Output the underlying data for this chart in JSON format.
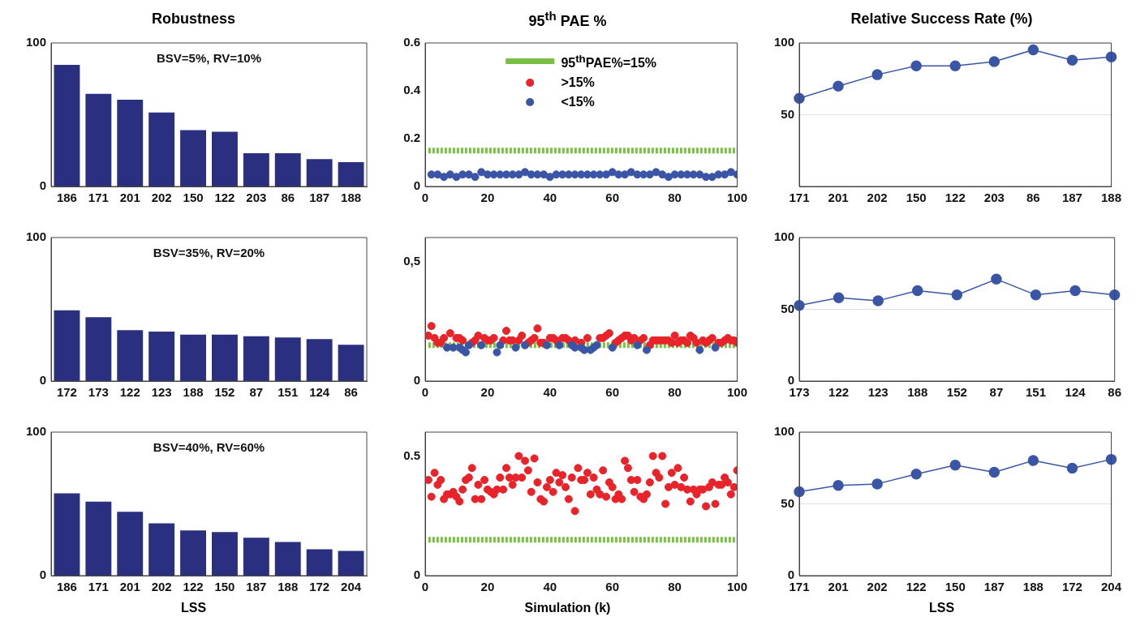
{
  "chart_data": [
    {
      "type": "bar",
      "title": "Robustness",
      "categories": [
        "186",
        "171",
        "201",
        "202",
        "150",
        "122",
        "203",
        "86",
        "187",
        "188"
      ],
      "values": [
        84.7,
        64.5,
        60.5,
        51.6,
        39.2,
        38.2,
        23.1,
        23.1,
        19.1,
        16.9
      ],
      "color": "#2b2f7f",
      "ylim": [
        0,
        100
      ],
      "yticks": [
        0,
        100
      ],
      "annotations": [
        "BSV=5%, RV=10%"
      ]
    },
    {
      "type": "scatter",
      "title": "95$^{th}$ PAE %",
      "xlim": [
        0,
        100
      ],
      "xticks": [
        0,
        20,
        40,
        60,
        80,
        100
      ],
      "ylim": [
        0,
        0.6
      ],
      "yticks": [
        0,
        0.2,
        0.4,
        0.6
      ],
      "marker": "circle",
      "legend": "top",
      "series": [
        {
          "name": "95$^{th}$PAE%=15%",
          "type": "line",
          "marker": "none",
          "line_style": "dashed",
          "color": "#78c043",
          "x": [
            1,
            100
          ],
          "values": [
            0.15,
            0.15
          ]
        },
        {
          "name": ">15%",
          "color": "#e8232a"
        },
        {
          "name": "<15%",
          "color": "#3b55a6",
          "x": [
            2,
            4,
            6,
            8,
            10,
            12,
            14,
            16,
            18,
            20,
            22,
            24,
            26,
            28,
            30,
            32,
            34,
            36,
            38,
            40,
            42,
            44,
            46,
            48,
            50,
            52,
            54,
            56,
            58,
            60,
            62,
            64,
            66,
            68,
            70,
            72,
            74,
            76,
            78,
            80,
            82,
            84,
            86,
            88,
            90,
            92,
            94,
            96,
            98,
            100
          ],
          "values": [
            0.05,
            0.05,
            0.04,
            0.05,
            0.04,
            0.05,
            0.05,
            0.04,
            0.06,
            0.05,
            0.05,
            0.05,
            0.05,
            0.05,
            0.05,
            0.06,
            0.05,
            0.05,
            0.05,
            0.04,
            0.05,
            0.05,
            0.05,
            0.05,
            0.05,
            0.05,
            0.05,
            0.05,
            0.05,
            0.06,
            0.05,
            0.05,
            0.06,
            0.05,
            0.05,
            0.05,
            0.06,
            0.05,
            0.04,
            0.05,
            0.05,
            0.05,
            0.05,
            0.05,
            0.04,
            0.04,
            0.05,
            0.05,
            0.06,
            0.05
          ]
        }
      ]
    },
    {
      "type": "line",
      "title": "Relative Success Rate (%)",
      "categories": [
        "171",
        "201",
        "202",
        "150",
        "122",
        "203",
        "86",
        "187",
        "188"
      ],
      "values": [
        61.4,
        69.9,
        77.9,
        84,
        84,
        87,
        95.2,
        88,
        90.2
      ],
      "color": "#3b55a6",
      "ylim": [
        0,
        100
      ],
      "yticks": [
        50,
        100
      ],
      "grid": "y",
      "marker": "circle"
    },
    {
      "type": "bar",
      "categories": [
        "172",
        "173",
        "122",
        "123",
        "188",
        "152",
        "87",
        "151",
        "124",
        "86"
      ],
      "values": [
        49.3,
        44.5,
        35.5,
        34.4,
        32.3,
        32.3,
        31.2,
        30.4,
        29.3,
        25.3
      ],
      "color": "#2b2f7f",
      "ylim": [
        0,
        100
      ],
      "yticks": [
        0,
        100
      ],
      "annotations": [
        "BSV=35%, RV=20%"
      ]
    },
    {
      "type": "scatter",
      "xlim": [
        0,
        100
      ],
      "xticks": [
        0,
        20,
        40,
        60,
        80,
        100
      ],
      "ylim": [
        0,
        0.6
      ],
      "yticks": [
        0,
        {
          "value": 0.5,
          "label": "0,5"
        }
      ],
      "marker": "circle",
      "series": [
        {
          "type": "line",
          "marker": "none",
          "line_style": "dashed",
          "color": "#78c043",
          "x": [
            1,
            100
          ],
          "values": [
            0.15,
            0.15
          ]
        },
        {
          "color": "#e8232a",
          "x": [
            1,
            2,
            3,
            4,
            5,
            6,
            8,
            10,
            11,
            12,
            15,
            16,
            17,
            19,
            20,
            21,
            22,
            25,
            26,
            27,
            28,
            30,
            31,
            33,
            34,
            35,
            36,
            37,
            38,
            40,
            41,
            42,
            44,
            45,
            46,
            48,
            50,
            52,
            56,
            57,
            58,
            59,
            61,
            62,
            63,
            64,
            65,
            66,
            67,
            69,
            70,
            72,
            73,
            74,
            75,
            76,
            77,
            78,
            79,
            80,
            81,
            82,
            83,
            84,
            85,
            86,
            87,
            89,
            90,
            91,
            92,
            94,
            95,
            96,
            97,
            98,
            99,
            100
          ],
          "values": [
            0.19,
            0.23,
            0.18,
            0.16,
            0.16,
            0.18,
            0.2,
            0.18,
            0.18,
            0.17,
            0.16,
            0.17,
            0.19,
            0.18,
            0.17,
            0.17,
            0.18,
            0.17,
            0.21,
            0.17,
            0.17,
            0.17,
            0.19,
            0.16,
            0.17,
            0.18,
            0.22,
            0.16,
            0.16,
            0.18,
            0.18,
            0.17,
            0.18,
            0.18,
            0.17,
            0.17,
            0.16,
            0.18,
            0.18,
            0.18,
            0.19,
            0.2,
            0.16,
            0.17,
            0.18,
            0.19,
            0.19,
            0.17,
            0.18,
            0.17,
            0.18,
            0.15,
            0.17,
            0.17,
            0.17,
            0.17,
            0.17,
            0.17,
            0.16,
            0.19,
            0.16,
            0.17,
            0.17,
            0.16,
            0.19,
            0.18,
            0.16,
            0.17,
            0.16,
            0.17,
            0.18,
            0.16,
            0.16,
            0.17,
            0.18,
            0.17,
            0.17,
            0.16
          ]
        },
        {
          "color": "#3b55a6",
          "x": [
            7,
            9,
            11,
            12,
            13,
            14,
            18,
            23,
            24,
            29,
            32,
            39,
            43,
            47,
            48,
            50,
            51,
            53,
            54,
            55,
            60,
            68,
            71,
            88,
            93
          ],
          "values": [
            0.14,
            0.14,
            0.14,
            0.13,
            0.12,
            0.15,
            0.15,
            0.12,
            0.15,
            0.14,
            0.15,
            0.15,
            0.15,
            0.15,
            0.14,
            0.14,
            0.13,
            0.13,
            0.14,
            0.15,
            0.14,
            0.15,
            0.13,
            0.13,
            0.14
          ]
        }
      ]
    },
    {
      "type": "line",
      "categories": [
        "173",
        "122",
        "123",
        "188",
        "152",
        "87",
        "151",
        "124",
        "86"
      ],
      "values": [
        52.7,
        58,
        56,
        63,
        60,
        71,
        60,
        63,
        60
      ],
      "color": "#3b55a6",
      "ylim": [
        0,
        100
      ],
      "yticks": [
        0,
        50,
        100
      ],
      "grid": "y",
      "marker": "circle"
    },
    {
      "type": "bar",
      "xlabel": "LSS",
      "categories": [
        "186",
        "171",
        "201",
        "202",
        "122",
        "150",
        "187",
        "188",
        "172",
        "204"
      ],
      "values": [
        57.3,
        51.5,
        44.5,
        36.5,
        31.5,
        30.4,
        26.4,
        23.5,
        18.4,
        17.3
      ],
      "color": "#2b2f7f",
      "ylim": [
        0,
        100
      ],
      "yticks": [
        0,
        100
      ],
      "annotations": [
        "BSV=40%, RV=60%"
      ]
    },
    {
      "type": "scatter",
      "xlabel": "Simulation (k)",
      "xlim": [
        0,
        100
      ],
      "xticks": [
        0,
        20,
        40,
        60,
        80,
        100
      ],
      "ylim": [
        0,
        0.6
      ],
      "yticks": [
        0,
        0.5
      ],
      "marker": "circle",
      "series": [
        {
          "type": "line",
          "marker": "none",
          "line_style": "dashed",
          "color": "#78c043",
          "x": [
            1,
            100
          ],
          "values": [
            0.15,
            0.15
          ]
        },
        {
          "color": "#e8232a",
          "x": [
            1,
            2,
            3,
            4,
            5,
            6,
            7,
            8,
            9,
            10,
            11,
            12,
            13,
            14,
            15,
            16,
            17,
            18,
            19,
            20,
            21,
            22,
            23,
            24,
            25,
            26,
            27,
            28,
            29,
            30,
            31,
            32,
            33,
            34,
            35,
            36,
            37,
            38,
            39,
            40,
            41,
            42,
            43,
            44,
            45,
            46,
            47,
            48,
            49,
            50,
            51,
            52,
            53,
            54,
            55,
            56,
            57,
            58,
            59,
            60,
            61,
            62,
            63,
            64,
            65,
            66,
            67,
            68,
            69,
            70,
            71,
            72,
            73,
            74,
            75,
            76,
            77,
            78,
            79,
            80,
            81,
            82,
            83,
            84,
            85,
            86,
            87,
            88,
            89,
            90,
            91,
            92,
            93,
            94,
            95,
            96,
            97,
            98,
            99,
            100
          ],
          "values": [
            0.4,
            0.33,
            0.43,
            0.38,
            0.4,
            0.32,
            0.34,
            0.34,
            0.35,
            0.33,
            0.31,
            0.36,
            0.4,
            0.41,
            0.45,
            0.32,
            0.38,
            0.32,
            0.4,
            0.36,
            0.35,
            0.34,
            0.36,
            0.41,
            0.36,
            0.45,
            0.41,
            0.38,
            0.41,
            0.5,
            0.41,
            0.48,
            0.44,
            0.35,
            0.49,
            0.39,
            0.32,
            0.31,
            0.37,
            0.4,
            0.35,
            0.43,
            0.39,
            0.42,
            0.37,
            0.32,
            0.41,
            0.27,
            0.45,
            0.4,
            0.4,
            0.43,
            0.34,
            0.41,
            0.36,
            0.34,
            0.44,
            0.33,
            0.39,
            0.37,
            0.32,
            0.34,
            0.32,
            0.48,
            0.45,
            0.4,
            0.35,
            0.4,
            0.33,
            0.32,
            0.34,
            0.39,
            0.5,
            0.43,
            0.41,
            0.5,
            0.3,
            0.37,
            0.43,
            0.38,
            0.45,
            0.37,
            0.41,
            0.36,
            0.31,
            0.36,
            0.34,
            0.36,
            0.36,
            0.29,
            0.37,
            0.39,
            0.3,
            0.38,
            0.38,
            0.41,
            0.39,
            0.34,
            0.37,
            0.44
          ]
        }
      ]
    },
    {
      "type": "line",
      "xlabel": "LSS",
      "categories": [
        "171",
        "201",
        "202",
        "122",
        "150",
        "187",
        "188",
        "172",
        "204"
      ],
      "values": [
        58.5,
        62.8,
        63.9,
        70.8,
        77,
        72,
        80.2,
        74.9,
        81
      ],
      "color": "#3b55a6",
      "ylim": [
        0,
        100
      ],
      "yticks": [
        0,
        50,
        100
      ],
      "grid": "y",
      "marker": "circle"
    }
  ]
}
